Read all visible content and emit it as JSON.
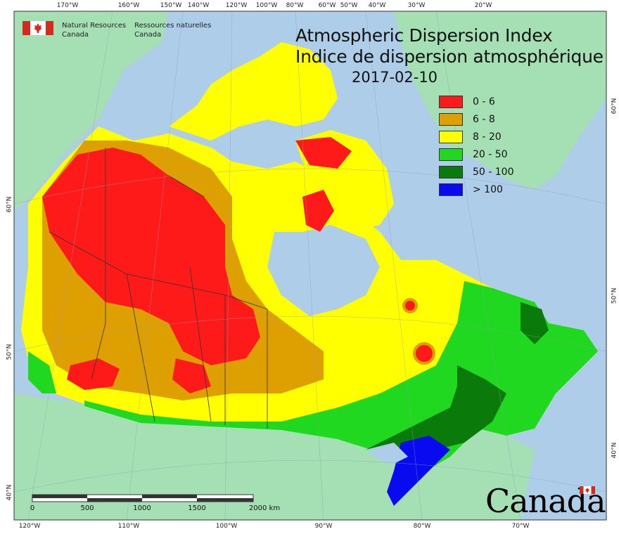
{
  "header": {
    "org_en_line1": "Natural Resources",
    "org_en_line2": "Canada",
    "org_fr_line1": "Ressources naturelles",
    "org_fr_line2": "Canada"
  },
  "title": {
    "en": "Atmospheric Dispersion Index",
    "fr": "Indice de dispersion atmosphérique",
    "date": "2017-02-10"
  },
  "legend": [
    {
      "label": "0 - 6",
      "color": "#ff1a1a"
    },
    {
      "label": "6 - 8",
      "color": "#dea000"
    },
    {
      "label": "8 - 20",
      "color": "#ffff00"
    },
    {
      "label": "20 - 50",
      "color": "#1fd81f"
    },
    {
      "label": "50 - 100",
      "color": "#0a7a0a"
    },
    {
      "label": "> 100",
      "color": "#0a0af0"
    }
  ],
  "axes": {
    "top_lon": [
      "170°W",
      "160°W",
      "150°W",
      "140°W",
      "120°W",
      "100°W",
      "80°W",
      "60°W",
      "50°W",
      "40°W",
      "30°W",
      "20°W"
    ],
    "bottom_lon": [
      "120°W",
      "110°W",
      "100°W",
      "90°W",
      "80°W",
      "70°W"
    ],
    "left_lat": [
      "60°N",
      "50°N",
      "40°N"
    ],
    "right_lat": [
      "60°N",
      "50°N",
      "40°N"
    ]
  },
  "scalebar": {
    "labels": [
      "0",
      "500",
      "1000",
      "1500",
      "2000 km"
    ]
  },
  "wordmark": "Canada",
  "colors": {
    "ocean": "#aecde8",
    "land_other": "#a5dfb4",
    "border": "#333333"
  }
}
